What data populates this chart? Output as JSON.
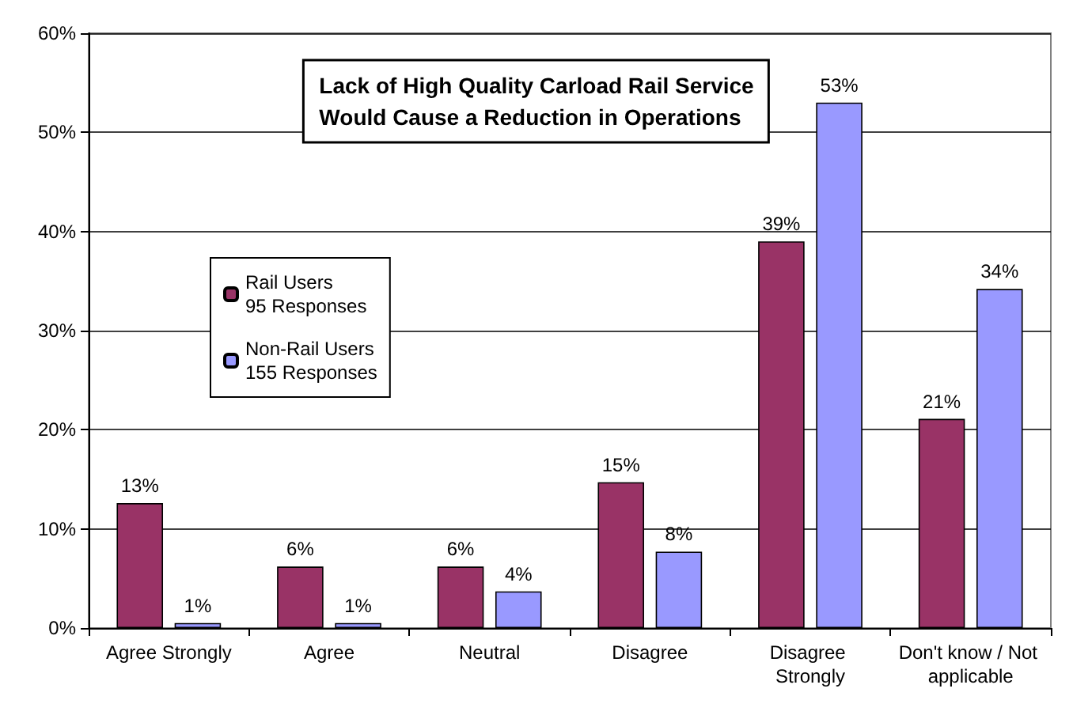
{
  "chart_data": {
    "type": "bar",
    "title": "Lack of High Quality Carload Rail Service\nWould Cause a Reduction in Operations",
    "categories": [
      "Agree Strongly",
      "Agree",
      "Neutral",
      "Disagree",
      "Disagree Strongly",
      "Don't know / Not applicable"
    ],
    "series": [
      {
        "name": "Rail Users\n95 Responses",
        "color": "#993366",
        "values": [
          12.6,
          6.2,
          6.2,
          14.7,
          39,
          21.1
        ],
        "value_labels": [
          "13%",
          "6%",
          "6%",
          "15%",
          "39%",
          "21%"
        ]
      },
      {
        "name": "Non-Rail Users\n155 Responses",
        "color": "#9999ff",
        "values": [
          0.5,
          0.5,
          3.7,
          7.7,
          53,
          34.2
        ],
        "value_labels": [
          "1%",
          "1%",
          "4%",
          "8%",
          "53%",
          "34%"
        ]
      }
    ],
    "ylim": [
      0,
      60
    ],
    "yticks": [
      {
        "value": 0,
        "label": "0%"
      },
      {
        "value": 10,
        "label": "10%"
      },
      {
        "value": 20,
        "label": "20%"
      },
      {
        "value": 30,
        "label": "30%"
      },
      {
        "value": 40,
        "label": "40%"
      },
      {
        "value": 50,
        "label": "50%"
      },
      {
        "value": 60,
        "label": "60%"
      }
    ],
    "grid": "y",
    "legend": "left"
  }
}
